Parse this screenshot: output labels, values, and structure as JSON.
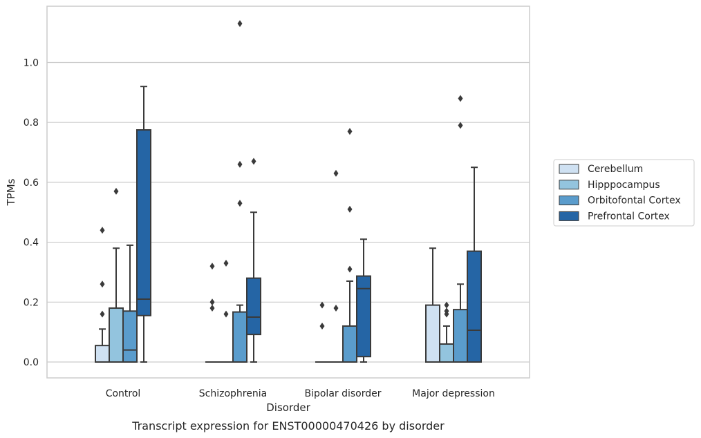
{
  "chart_data": {
    "type": "box",
    "xlabel": "Disorder",
    "ylabel": "TPMs",
    "caption": "Transcript expression for ENST00000470426 by disorder",
    "ylim": [
      -0.055,
      1.19
    ],
    "yticks": [
      "0.0",
      "0.2",
      "0.4",
      "0.6",
      "0.8",
      "1.0"
    ],
    "grid": "horizontal",
    "legend_position": "right, outside",
    "categories": [
      "Control",
      "Schizophrenia",
      "Bipolar disorder",
      "Major depression"
    ],
    "series": [
      {
        "name": "Cerebellum",
        "color": "#cfe1f2",
        "boxes": [
          {
            "min": 0.0,
            "q1": 0.0,
            "median": 0.0,
            "q3": 0.055,
            "max": 0.11,
            "outliers": [
              0.16,
              0.26,
              0.44
            ]
          },
          {
            "min": 0.0,
            "q1": 0.0,
            "median": 0.0,
            "q3": 0.0,
            "max": 0.0,
            "outliers": [
              0.18,
              0.2,
              0.32
            ]
          },
          {
            "min": 0.0,
            "q1": 0.0,
            "median": 0.0,
            "q3": 0.0,
            "max": 0.0,
            "outliers": [
              0.12,
              0.19
            ]
          },
          {
            "min": 0.0,
            "q1": 0.0,
            "median": 0.0,
            "q3": 0.19,
            "max": 0.38,
            "outliers": []
          }
        ]
      },
      {
        "name": "Hipppocampus",
        "color": "#93c4de",
        "boxes": [
          {
            "min": 0.0,
            "q1": 0.0,
            "median": 0.0,
            "q3": 0.18,
            "max": 0.38,
            "outliers": [
              0.57
            ]
          },
          {
            "min": 0.0,
            "q1": 0.0,
            "median": 0.0,
            "q3": 0.0,
            "max": 0.0,
            "outliers": [
              0.16,
              0.33
            ]
          },
          {
            "min": 0.0,
            "q1": 0.0,
            "median": 0.0,
            "q3": 0.0,
            "max": 0.0,
            "outliers": [
              0.18,
              0.63
            ]
          },
          {
            "min": 0.0,
            "q1": 0.0,
            "median": 0.0,
            "q3": 0.06,
            "max": 0.12,
            "outliers": [
              0.16,
              0.17,
              0.19
            ]
          }
        ]
      },
      {
        "name": "Orbitofontal Cortex",
        "color": "#5a9ccc",
        "boxes": [
          {
            "min": 0.0,
            "q1": 0.0,
            "median": 0.04,
            "q3": 0.17,
            "max": 0.39,
            "outliers": []
          },
          {
            "min": 0.0,
            "q1": 0.0,
            "median": 0.0,
            "q3": 0.167,
            "max": 0.19,
            "outliers": [
              0.53,
              0.66,
              1.13
            ]
          },
          {
            "min": 0.0,
            "q1": 0.0,
            "median": 0.0,
            "q3": 0.12,
            "max": 0.27,
            "outliers": [
              0.31,
              0.51,
              0.77
            ]
          },
          {
            "min": 0.0,
            "q1": 0.0,
            "median": 0.0,
            "q3": 0.175,
            "max": 0.26,
            "outliers": [
              0.79,
              0.88
            ]
          }
        ]
      },
      {
        "name": "Prefrontal Cortex",
        "color": "#2565a5",
        "boxes": [
          {
            "min": 0.0,
            "q1": 0.155,
            "median": 0.21,
            "q3": 0.775,
            "max": 0.92,
            "outliers": []
          },
          {
            "min": 0.0,
            "q1": 0.092,
            "median": 0.15,
            "q3": 0.28,
            "max": 0.5,
            "outliers": [
              0.67
            ]
          },
          {
            "min": 0.0,
            "q1": 0.018,
            "median": 0.245,
            "q3": 0.287,
            "max": 0.41,
            "outliers": []
          },
          {
            "min": 0.0,
            "q1": 0.0,
            "median": 0.106,
            "q3": 0.37,
            "max": 0.65,
            "outliers": []
          }
        ]
      }
    ]
  }
}
